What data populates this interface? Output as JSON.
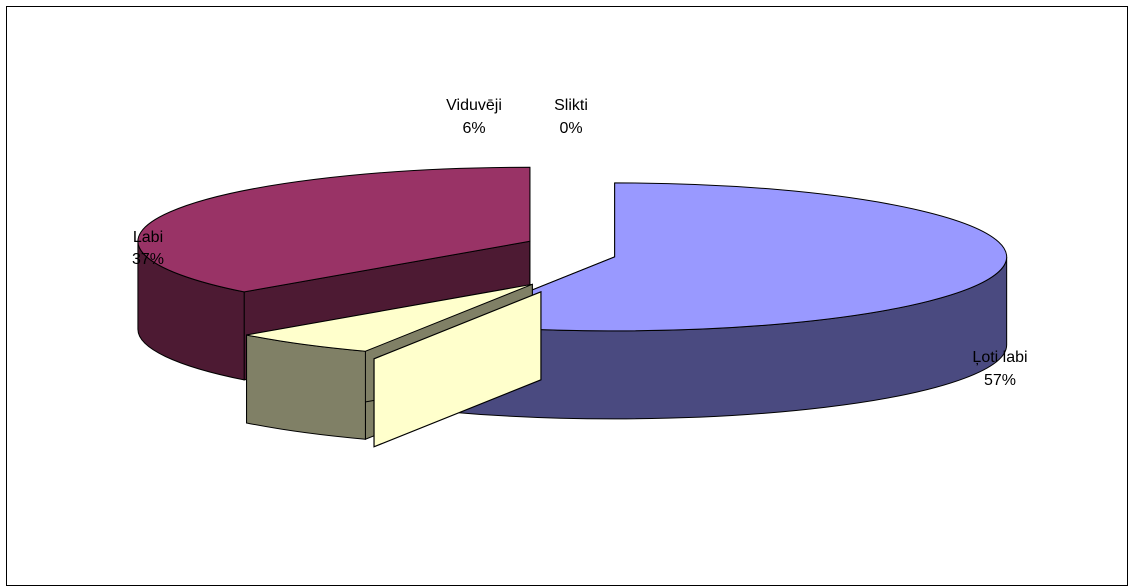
{
  "chart_data": {
    "type": "pie",
    "style": "3d-exploded",
    "legend": "none",
    "slices": [
      {
        "name": "Ļoti labi",
        "value": 57,
        "label": "57%",
        "top_color": "#9999ff",
        "side_color": "#4a4a80"
      },
      {
        "name": "Slikti",
        "value": 0,
        "label": "0%",
        "top_color": "#ffffcc",
        "side_color": "#808060"
      },
      {
        "name": "Viduvēji",
        "value": 6,
        "label": "6%",
        "top_color": "#ffffcc",
        "side_color": "#808066"
      },
      {
        "name": "Labi",
        "value": 37,
        "label": "37%",
        "top_color": "#993366",
        "side_color": "#4d1a33"
      }
    ]
  }
}
